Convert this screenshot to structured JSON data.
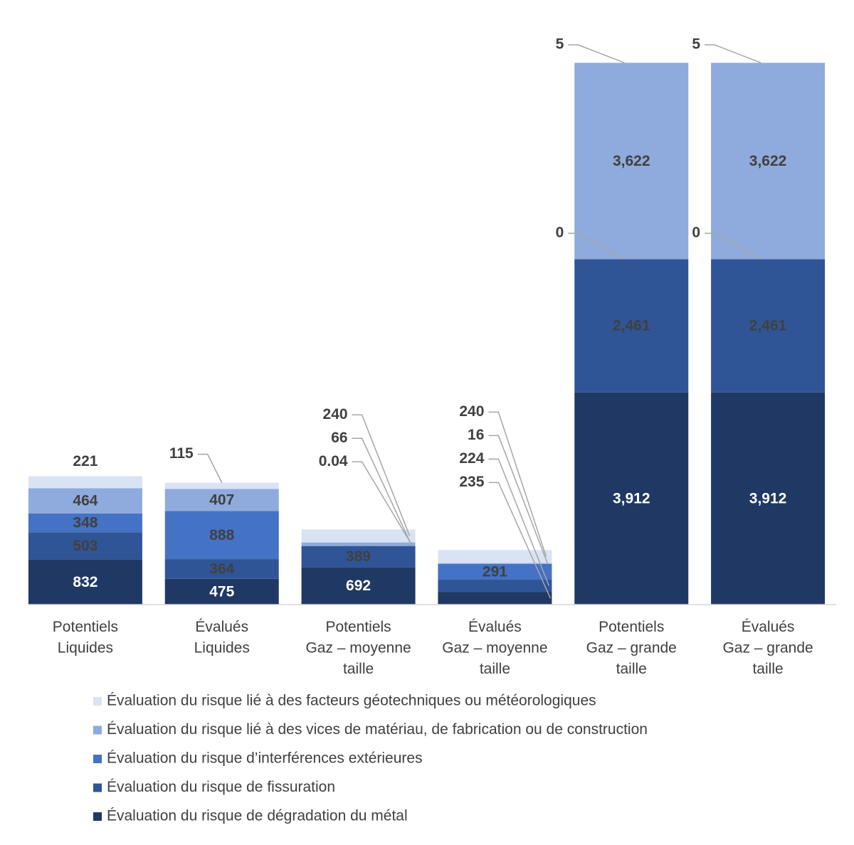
{
  "chart_data": {
    "type": "stacked_bar",
    "categories": [
      "Potentiels\nLiquides",
      "Évalués\nLiquides",
      "Potentiels\nGaz – moyenne\ntaille",
      "Évalués\nGaz – moyenne\ntaille",
      "Potentiels\nGaz – grande\ntaille",
      "Évalués\nGaz – grande\ntaille"
    ],
    "ylim": [
      0,
      10000
    ],
    "series": [
      {
        "name": "Évaluation du risque de dégradation du métal",
        "color": "#203864",
        "values": [
          832,
          475,
          692,
          235,
          3912,
          3912
        ],
        "value_labels": [
          "832",
          "475",
          "692",
          "235",
          "3,912",
          "3,912"
        ]
      },
      {
        "name": "Évaluation du risque de fissuration",
        "color": "#2f5597",
        "values": [
          503,
          364,
          389,
          224,
          2461,
          2461
        ],
        "value_labels": [
          "503",
          "364",
          "389",
          "224",
          "2,461",
          "2,461"
        ]
      },
      {
        "name": "Évaluation du risque d’interférences extérieures",
        "color": "#4472c4",
        "values": [
          348,
          888,
          0.04,
          291,
          0,
          0
        ],
        "value_labels": [
          "348",
          "888",
          "0.04",
          "291",
          "0",
          "0"
        ]
      },
      {
        "name": "Évaluation du risque lié à des vices de matériau, de fabrication ou de construction",
        "color": "#8faadc",
        "values": [
          464,
          407,
          66,
          16,
          3622,
          3622
        ],
        "value_labels": [
          "464",
          "407",
          "66",
          "16",
          "3,622",
          "3,622"
        ]
      },
      {
        "name": "Évaluation du risque lié à des facteurs géotechniques ou météorologiques",
        "color": "#dae3f3",
        "values": [
          221,
          115,
          240,
          240,
          5,
          5
        ],
        "value_labels": [
          "221",
          "115",
          "240",
          "240",
          "5",
          "5"
        ]
      }
    ]
  }
}
